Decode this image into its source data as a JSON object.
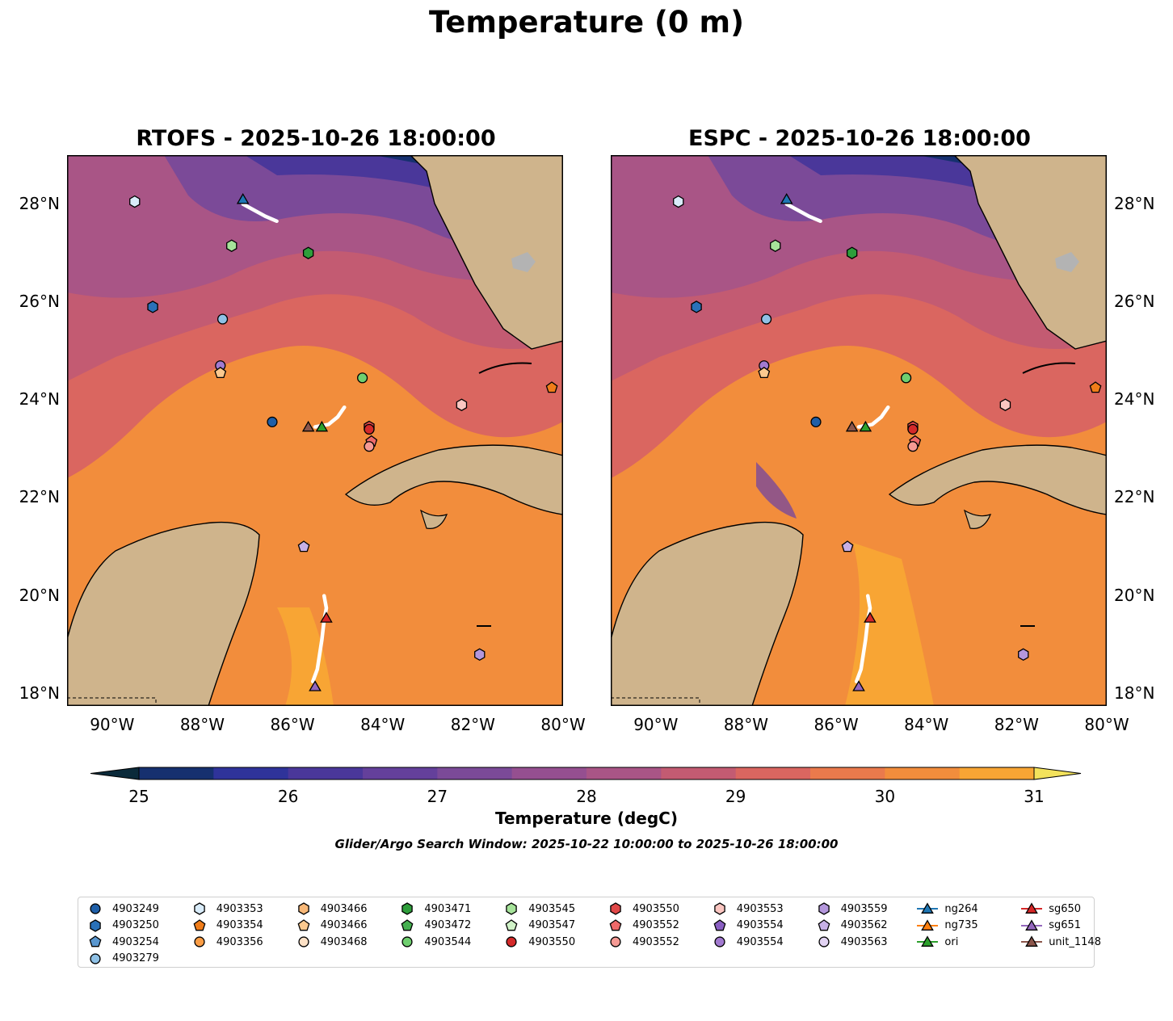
{
  "title": "Temperature (0 m)",
  "panels": [
    {
      "title": "RTOFS - 2025-10-26 18:00:00"
    },
    {
      "title": "ESPC - 2025-10-26 18:00:00"
    }
  ],
  "lon_labels": [
    "90°W",
    "88°W",
    "86°W",
    "84°W",
    "82°W",
    "80°W"
  ],
  "lat_labels": [
    "28°N",
    "26°N",
    "24°N",
    "22°N",
    "20°N",
    "18°N"
  ],
  "colorbar": {
    "label": "Temperature (degC)",
    "ticks": [
      "25",
      "26",
      "27",
      "28",
      "29",
      "30",
      "31"
    ],
    "colors": [
      "#0b2a3a",
      "#16306f",
      "#2f339a",
      "#4a379a",
      "#64409b",
      "#7b4a98",
      "#954f90",
      "#a95586",
      "#c35b72",
      "#da6660",
      "#ea7a4c",
      "#f28d3c",
      "#f8a534",
      "#f6c43d",
      "#f3e25c"
    ]
  },
  "search_window": "Glider/Argo Search Window: 2025-10-22 10:00:00 to 2025-10-26 18:00:00",
  "legend": [
    {
      "label": "4903249",
      "marker": "circle",
      "color": "#1f5fa8"
    },
    {
      "label": "4903250",
      "marker": "hexagon",
      "color": "#2a71b8"
    },
    {
      "label": "4903254",
      "marker": "pentagon",
      "color": "#5a97cf"
    },
    {
      "label": "4903279",
      "marker": "circle",
      "color": "#8fc1e6"
    },
    {
      "label": "4903353",
      "marker": "hexagon",
      "color": "#d9ecfa"
    },
    {
      "label": "4903354",
      "marker": "pentagon",
      "color": "#f07d1a"
    },
    {
      "label": "4903356",
      "marker": "circle",
      "color": "#fb9d45"
    },
    {
      "label": "4903466",
      "marker": "hexagon",
      "color": "#f8b878"
    },
    {
      "label": "4903466",
      "marker": "pentagon",
      "color": "#fbc98f"
    },
    {
      "label": "4903468",
      "marker": "circle",
      "color": "#fde1c6"
    },
    {
      "label": "4903471",
      "marker": "hexagon",
      "color": "#2e9e3b"
    },
    {
      "label": "4903472",
      "marker": "pentagon",
      "color": "#45b050"
    },
    {
      "label": "4903544",
      "marker": "circle",
      "color": "#6fcf6f"
    },
    {
      "label": "4903545",
      "marker": "hexagon",
      "color": "#a6e39a"
    },
    {
      "label": "4903547",
      "marker": "pentagon",
      "color": "#d1f3c8"
    },
    {
      "label": "4903550",
      "marker": "circle",
      "color": "#d42a2a"
    },
    {
      "label": "4903550",
      "marker": "hexagon",
      "color": "#e04848"
    },
    {
      "label": "4903552",
      "marker": "pentagon",
      "color": "#ef6a6a"
    },
    {
      "label": "4903552",
      "marker": "circle",
      "color": "#f59a94"
    },
    {
      "label": "4903553",
      "marker": "hexagon",
      "color": "#fbc6c1"
    },
    {
      "label": "4903554",
      "marker": "pentagon",
      "color": "#8a5fc2"
    },
    {
      "label": "4903554",
      "marker": "circle",
      "color": "#a27ad0"
    },
    {
      "label": "4903559",
      "marker": "hexagon",
      "color": "#b497dc"
    },
    {
      "label": "4903562",
      "marker": "pentagon",
      "color": "#c7b0e5"
    },
    {
      "label": "4903563",
      "marker": "circle",
      "color": "#e2d3f3"
    },
    {
      "label": "ng264",
      "marker": "triangle",
      "color": "#1f77b4"
    },
    {
      "label": "ng735",
      "marker": "triangle",
      "color": "#ff7f0e"
    },
    {
      "label": "ori",
      "marker": "triangle",
      "color": "#2ca02c"
    },
    {
      "label": "sg650",
      "marker": "triangle",
      "color": "#d62728"
    },
    {
      "label": "sg651",
      "marker": "triangle",
      "color": "#9467bd"
    },
    {
      "label": "unit_1148",
      "marker": "triangle",
      "color": "#8c564b"
    }
  ],
  "map_markers": [
    {
      "lon": -89.5,
      "lat": 28.05,
      "marker": "hexagon",
      "color": "#d9ecfa"
    },
    {
      "lon": -87.1,
      "lat": 28.1,
      "marker": "triangle",
      "color": "#1f77b4"
    },
    {
      "lon": -87.35,
      "lat": 27.15,
      "marker": "hexagon",
      "color": "#a6e39a"
    },
    {
      "lon": -85.65,
      "lat": 27.0,
      "marker": "hexagon",
      "color": "#2e9e3b"
    },
    {
      "lon": -89.1,
      "lat": 25.9,
      "marker": "hexagon",
      "color": "#2a71b8"
    },
    {
      "lon": -87.55,
      "lat": 25.65,
      "marker": "circle",
      "color": "#8fc1e6"
    },
    {
      "lon": -87.6,
      "lat": 24.7,
      "marker": "circle",
      "color": "#a27ad0"
    },
    {
      "lon": -87.6,
      "lat": 24.55,
      "marker": "pentagon",
      "color": "#fbc98f"
    },
    {
      "lon": -84.45,
      "lat": 24.45,
      "marker": "circle",
      "color": "#6fcf6f"
    },
    {
      "lon": -82.25,
      "lat": 23.9,
      "marker": "hexagon",
      "color": "#fbc6c1"
    },
    {
      "lon": -80.25,
      "lat": 24.25,
      "marker": "pentagon",
      "color": "#f07d1a"
    },
    {
      "lon": -86.45,
      "lat": 23.55,
      "marker": "circle",
      "color": "#1f5fa8"
    },
    {
      "lon": -85.65,
      "lat": 23.45,
      "marker": "triangle",
      "color": "#8c564b"
    },
    {
      "lon": -85.35,
      "lat": 23.45,
      "marker": "triangle",
      "color": "#2ca02c"
    },
    {
      "lon": -84.3,
      "lat": 23.45,
      "marker": "hexagon",
      "color": "#e04848"
    },
    {
      "lon": -84.3,
      "lat": 23.4,
      "marker": "circle",
      "color": "#d42a2a"
    },
    {
      "lon": -84.25,
      "lat": 23.15,
      "marker": "pentagon",
      "color": "#ef6a6a"
    },
    {
      "lon": -84.3,
      "lat": 23.05,
      "marker": "circle",
      "color": "#f59a94"
    },
    {
      "lon": -85.75,
      "lat": 21.0,
      "marker": "pentagon",
      "color": "#c7b0e5"
    },
    {
      "lon": -85.25,
      "lat": 19.55,
      "marker": "triangle",
      "color": "#d62728"
    },
    {
      "lon": -81.85,
      "lat": 18.8,
      "marker": "hexagon",
      "color": "#b497dc"
    },
    {
      "lon": -85.5,
      "lat": 18.15,
      "marker": "triangle",
      "color": "#9467bd"
    }
  ],
  "tracks": [
    [
      [
        -87.1,
        28.0
      ],
      [
        -86.6,
        27.75
      ],
      [
        -86.35,
        27.65
      ]
    ],
    [
      [
        -85.5,
        23.45
      ],
      [
        -85.2,
        23.5
      ],
      [
        -85.0,
        23.65
      ],
      [
        -84.85,
        23.85
      ]
    ],
    [
      [
        -85.3,
        20.0
      ],
      [
        -85.25,
        19.75
      ],
      [
        -85.3,
        19.5
      ],
      [
        -85.35,
        19.1
      ],
      [
        -85.45,
        18.5
      ],
      [
        -85.55,
        18.25
      ]
    ]
  ]
}
